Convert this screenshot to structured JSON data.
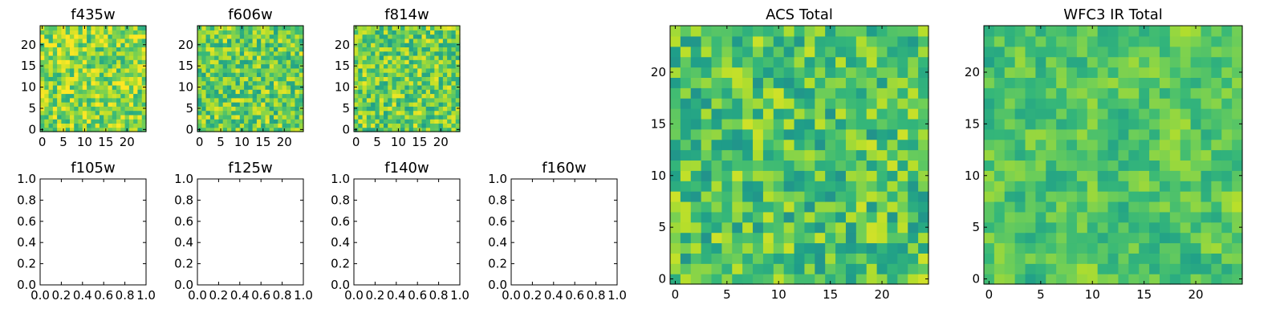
{
  "chart_data": [
    {
      "type": "heatmap",
      "title": "f435w",
      "x_ticks": [
        "0",
        "5",
        "10",
        "15",
        "20"
      ],
      "y_ticks": [
        "0",
        "5",
        "10",
        "15",
        "20"
      ],
      "grid_size": 25,
      "xlim": [
        -0.5,
        24.5
      ],
      "ylim": [
        -0.5,
        24.5
      ],
      "colormap": "viridis",
      "seed": 11,
      "smooth": 0,
      "bias": 0.1
    },
    {
      "type": "heatmap",
      "title": "f606w",
      "x_ticks": [
        "0",
        "5",
        "10",
        "15",
        "20"
      ],
      "y_ticks": [
        "0",
        "5",
        "10",
        "15",
        "20"
      ],
      "grid_size": 25,
      "xlim": [
        -0.5,
        24.5
      ],
      "ylim": [
        -0.5,
        24.5
      ],
      "colormap": "viridis",
      "seed": 23,
      "smooth": 0,
      "bias": 0.05
    },
    {
      "type": "heatmap",
      "title": "f814w",
      "x_ticks": [
        "0",
        "5",
        "10",
        "15",
        "20"
      ],
      "y_ticks": [
        "0",
        "5",
        "10",
        "15",
        "20"
      ],
      "grid_size": 25,
      "xlim": [
        -0.5,
        24.5
      ],
      "ylim": [
        -0.5,
        24.5
      ],
      "colormap": "viridis",
      "seed": 37,
      "smooth": 0,
      "bias": 0.05
    },
    {
      "type": "empty",
      "title": "f105w",
      "x_ticks": [
        "0.0",
        "0.2",
        "0.4",
        "0.6",
        "0.8",
        "1.0"
      ],
      "y_ticks": [
        "0.0",
        "0.2",
        "0.4",
        "0.6",
        "0.8",
        "1.0"
      ],
      "xlim": [
        0,
        1
      ],
      "ylim": [
        0,
        1
      ]
    },
    {
      "type": "empty",
      "title": "f125w",
      "x_ticks": [
        "0.0",
        "0.2",
        "0.4",
        "0.6",
        "0.8",
        "1.0"
      ],
      "y_ticks": [
        "0.0",
        "0.2",
        "0.4",
        "0.6",
        "0.8",
        "1.0"
      ],
      "xlim": [
        0,
        1
      ],
      "ylim": [
        0,
        1
      ]
    },
    {
      "type": "empty",
      "title": "f140w",
      "x_ticks": [
        "0.0",
        "0.2",
        "0.4",
        "0.6",
        "0.8",
        "1.0"
      ],
      "y_ticks": [
        "0.0",
        "0.2",
        "0.4",
        "0.6",
        "0.8",
        "1.0"
      ],
      "xlim": [
        0,
        1
      ],
      "ylim": [
        0,
        1
      ]
    },
    {
      "type": "empty",
      "title": "f160w",
      "x_ticks": [
        "0.0",
        "0.2",
        "0.4",
        "0.6",
        "0.8",
        "1.0"
      ],
      "y_ticks": [
        "0.0",
        "0.2",
        "0.4",
        "0.6",
        "0.8",
        "1.0"
      ],
      "xlim": [
        0,
        1
      ],
      "ylim": [
        0,
        1
      ]
    },
    {
      "type": "heatmap",
      "title": "ACS Total",
      "x_ticks": [
        "0",
        "5",
        "10",
        "15",
        "20"
      ],
      "y_ticks": [
        "0",
        "5",
        "10",
        "15",
        "20"
      ],
      "grid_size": 25,
      "xlim": [
        -0.5,
        24.5
      ],
      "ylim": [
        -0.5,
        24.5
      ],
      "colormap": "viridis",
      "seed": 51,
      "smooth": 0,
      "bias": 0.0
    },
    {
      "type": "heatmap",
      "title": "WFC3 IR Total",
      "x_ticks": [
        "0",
        "5",
        "10",
        "15",
        "20"
      ],
      "y_ticks": [
        "0",
        "5",
        "10",
        "15",
        "20"
      ],
      "grid_size": 25,
      "xlim": [
        -0.5,
        24.5
      ],
      "ylim": [
        -0.5,
        24.5
      ],
      "colormap": "viridis",
      "seed": 73,
      "smooth": 1,
      "bias": 0.0
    }
  ]
}
